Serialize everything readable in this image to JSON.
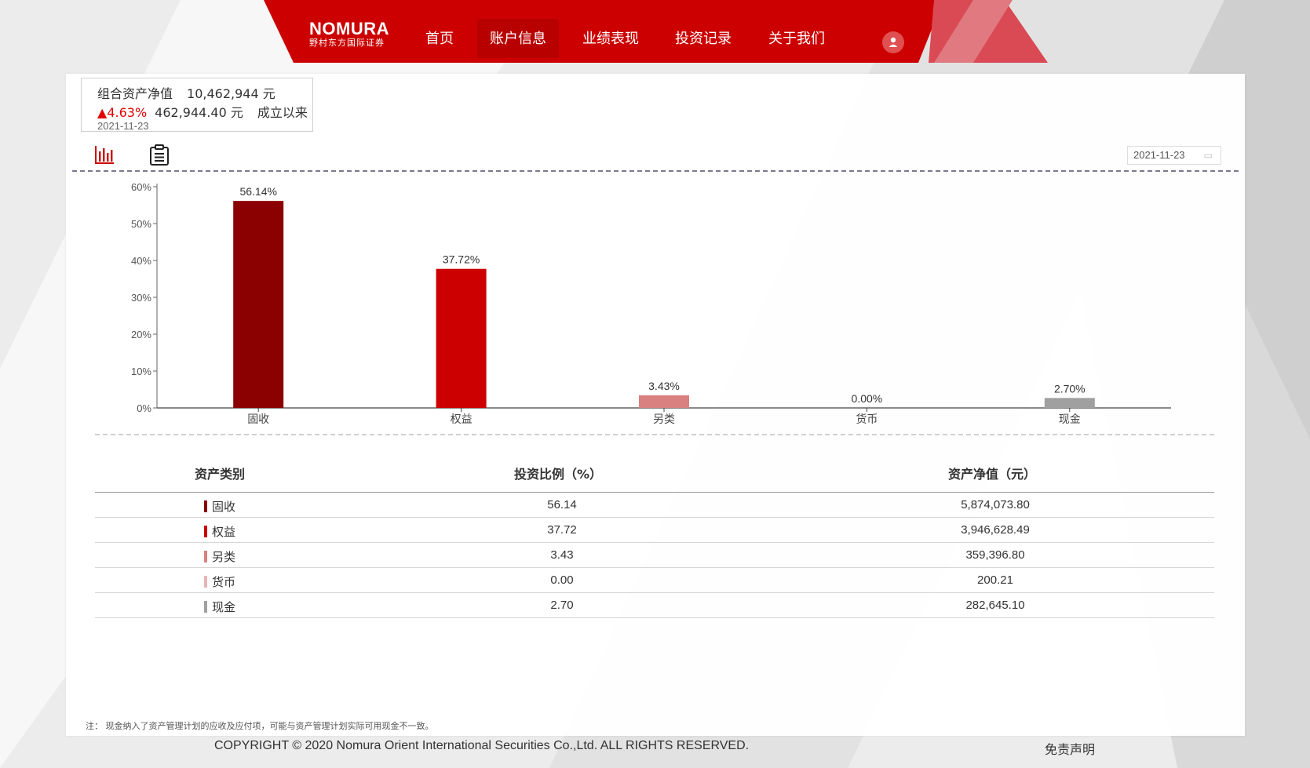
{
  "header": {
    "logo_main": "NOMURA",
    "logo_sub": "野村东方国际证券",
    "nav": [
      {
        "label": "首页"
      },
      {
        "label": "账户信息"
      },
      {
        "label": "业绩表现"
      },
      {
        "label": "投资记录"
      },
      {
        "label": "关于我们"
      }
    ],
    "active_nav": "账户信息",
    "brand_color": "#cc0000",
    "user_icon": "user-icon"
  },
  "summary": {
    "label": "组合资产净值",
    "value": "10,462,944 元",
    "change_arrow": "▲",
    "change_pct": "4.63%",
    "change_amount": "462,944.40 元",
    "since": "成立以来",
    "date": "2021-11-23"
  },
  "toolbar": {
    "chart_icon": "bar-chart-icon",
    "list_icon": "clipboard-list-icon",
    "date_value": "2021-11-23",
    "calendar_icon": "calendar-icon"
  },
  "chart_data": {
    "type": "bar",
    "categories": [
      "固收",
      "权益",
      "另类",
      "货币",
      "现金"
    ],
    "values": [
      56.14,
      37.72,
      3.43,
      0.0,
      2.7
    ],
    "data_labels": [
      "56.14%",
      "37.72%",
      "3.43%",
      "0.00%",
      "2.70%"
    ],
    "colors": [
      "#8b0000",
      "#cc0000",
      "#d98080",
      "#e8b4b4",
      "#a0a0a0"
    ],
    "ylim": [
      0,
      60
    ],
    "yticks": [
      "0%",
      "10%",
      "20%",
      "30%",
      "40%",
      "50%",
      "60%"
    ],
    "grid": false,
    "title": "",
    "xlabel": "",
    "ylabel": ""
  },
  "table": {
    "headers": [
      "资产类别",
      "投资比例（%）",
      "资产净值（元）"
    ],
    "rows": [
      {
        "category": "固收",
        "ratio": "56.14",
        "value": "5,874,073.80",
        "color": "#8b0000"
      },
      {
        "category": "权益",
        "ratio": "37.72",
        "value": "3,946,628.49",
        "color": "#cc0000"
      },
      {
        "category": "另类",
        "ratio": "3.43",
        "value": "359,396.80",
        "color": "#d98080"
      },
      {
        "category": "货币",
        "ratio": "0.00",
        "value": "200.21",
        "color": "#e8b4b4"
      },
      {
        "category": "现金",
        "ratio": "2.70",
        "value": "282,645.10",
        "color": "#a0a0a0"
      }
    ]
  },
  "footer": {
    "note": "注：  现金纳入了资产管理计划的应收及应付项，可能与资产管理计划实际可用现金不一致。",
    "copyright": "COPYRIGHT © 2020 Nomura Orient International Securities Co.,Ltd. ALL RIGHTS RESERVED.",
    "disclaimer": "免责声明"
  }
}
